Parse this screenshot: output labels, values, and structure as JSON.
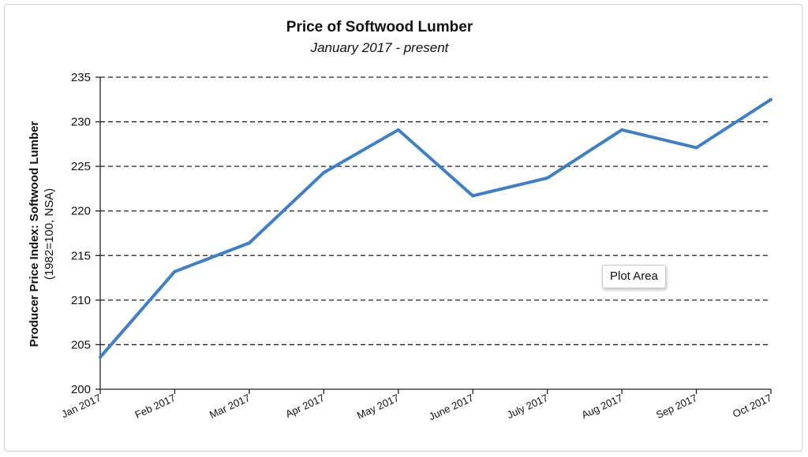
{
  "chart_data": {
    "type": "line",
    "title": "Price of Softwood Lumber",
    "subtitle": "January 2017 - present",
    "ylabel_line1": "Producer Price Index: Softwood Lumber",
    "ylabel_line2": "(1982=100, NSA)",
    "xlabel": "",
    "categories": [
      "Jan 2017",
      "Feb 2017",
      "Mar 2017",
      "Apr 2017",
      "May 2017",
      "June 2017",
      "July 2017",
      "Aug 2017",
      "Sep 2017",
      "Oct 2017"
    ],
    "series": [
      {
        "values": [
          203.6,
          213.2,
          216.4,
          224.3,
          229.1,
          221.7,
          223.7,
          229.1,
          227.1,
          232.5
        ],
        "color": "#3f7fc4"
      }
    ],
    "ylim": [
      200,
      235
    ],
    "yticks": [
      200,
      205,
      210,
      215,
      220,
      225,
      230,
      235
    ],
    "grid": true,
    "legend": "none"
  },
  "tooltip": {
    "label": "Plot Area"
  }
}
